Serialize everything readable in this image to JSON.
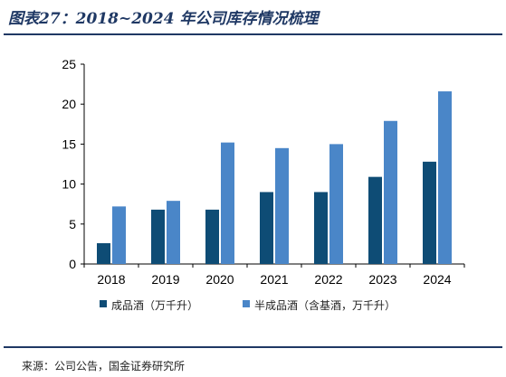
{
  "title": "图表27：2018~2024 年公司库存情况梳理",
  "source": "来源：公司公告，国金证券研究所",
  "chart_data": {
    "type": "bar",
    "categories": [
      "2018",
      "2019",
      "2020",
      "2021",
      "2022",
      "2023",
      "2024"
    ],
    "series": [
      {
        "name": "成品酒（万千升）",
        "color": "#0e4c75",
        "values": [
          2.6,
          6.8,
          6.8,
          9.0,
          9.0,
          10.9,
          12.8
        ]
      },
      {
        "name": "半成品酒（含基酒，万千升）",
        "color": "#4a86c8",
        "values": [
          7.2,
          7.9,
          15.2,
          14.5,
          15.0,
          17.9,
          21.6
        ]
      }
    ],
    "ylim": [
      0,
      25
    ],
    "yticks": [
      0,
      5,
      10,
      15,
      20,
      25
    ],
    "xlabel": "",
    "ylabel": "",
    "grid": false,
    "legend": "bottom"
  }
}
